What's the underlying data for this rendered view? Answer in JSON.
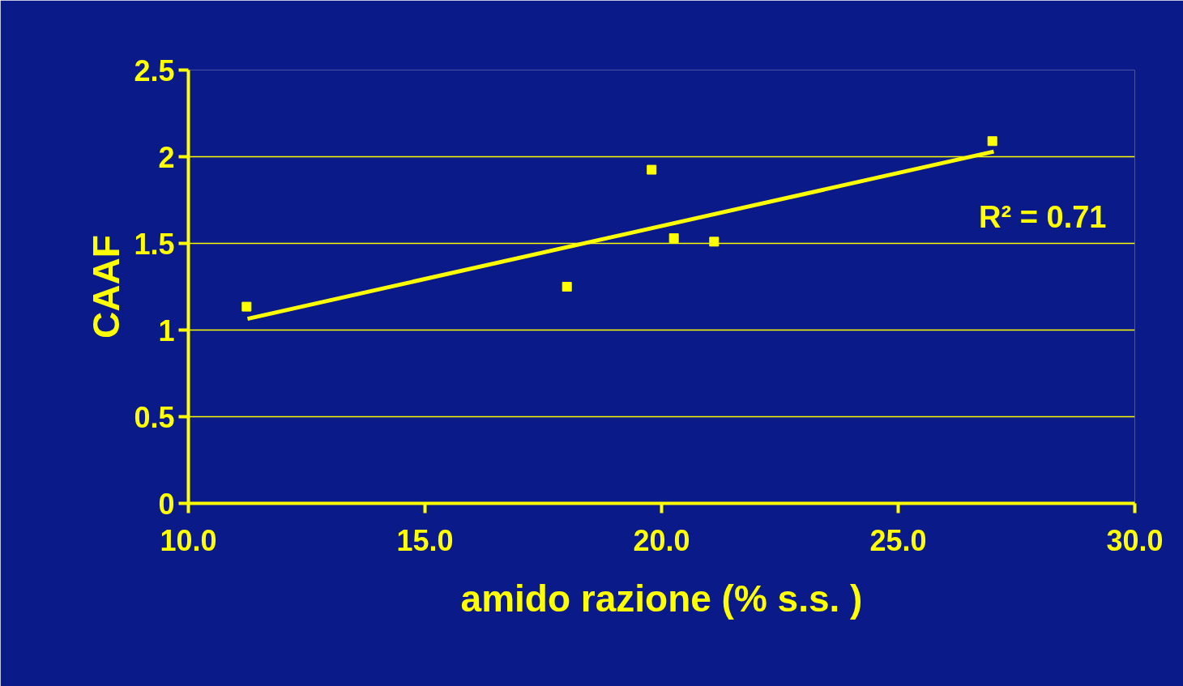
{
  "chart_data": {
    "type": "scatter",
    "xlabel": "amido razione (% s.s. )",
    "ylabel": "CAAF",
    "xlim": [
      10.0,
      30.0
    ],
    "xticks": [
      {
        "value": 10,
        "label": "10.0"
      },
      {
        "value": 15,
        "label": "15.0"
      },
      {
        "value": 20,
        "label": "20.0"
      },
      {
        "value": 25,
        "label": "25.0"
      },
      {
        "value": 30,
        "label": "30.0"
      }
    ],
    "ylim": [
      0,
      2.5
    ],
    "yticks": [
      0,
      0.5,
      1,
      1.5,
      2,
      2.5
    ],
    "grid": "y",
    "annotations": [
      "R² = 0.71"
    ],
    "series": [
      {
        "color": "#ffff00",
        "marker": "square",
        "x": [
          11.23,
          18.0,
          19.79,
          20.26,
          21.11,
          26.99
        ],
        "values": [
          1.135,
          1.25,
          1.925,
          1.53,
          1.51,
          2.09
        ]
      },
      {
        "type": "line",
        "color": "#ffff00",
        "x": [
          11.25,
          27.02
        ],
        "values": [
          1.065,
          2.03
        ]
      }
    ]
  }
}
